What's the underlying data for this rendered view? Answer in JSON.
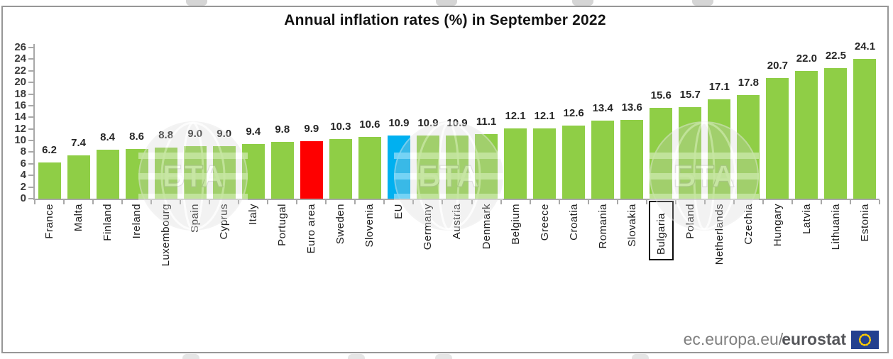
{
  "title": "Annual inflation rates (%) in September 2022",
  "footer": {
    "url_prefix": "ec.europa.eu/",
    "url_bold": "eurostat"
  },
  "watermark": {
    "text": "БТА"
  },
  "chart_data": {
    "type": "bar",
    "title": "Annual inflation rates (%) in September 2022",
    "xlabel": "",
    "ylabel": "",
    "ylim": [
      0,
      26
    ],
    "ytick_step": 2,
    "grid": false,
    "legend_position": "none",
    "value_labels": true,
    "bar_color_default": "#8FCE46",
    "highlight_colors": {
      "Euro area": "#FE0000",
      "EU": "#00B0F0"
    },
    "boxed_category": "Bulgaria",
    "categories": [
      "France",
      "Malta",
      "Finland",
      "Ireland",
      "Luxembourg",
      "Spain",
      "Cyprus",
      "Italy",
      "Portugal",
      "Euro area",
      "Sweden",
      "Slovenia",
      "EU",
      "Germany",
      "Austria",
      "Denmark",
      "Belgium",
      "Greece",
      "Croatia",
      "Romania",
      "Slovakia",
      "Bulgaria",
      "Poland",
      "Netherlands",
      "Czechia",
      "Hungary",
      "Latvia",
      "Lithuania",
      "Estonia"
    ],
    "values": [
      6.2,
      7.4,
      8.4,
      8.6,
      8.8,
      9.0,
      9.0,
      9.4,
      9.8,
      9.9,
      10.3,
      10.6,
      10.9,
      10.9,
      10.9,
      11.1,
      12.1,
      12.1,
      12.6,
      13.4,
      13.6,
      15.6,
      15.7,
      17.1,
      17.8,
      20.7,
      22.0,
      22.5,
      24.1
    ]
  }
}
